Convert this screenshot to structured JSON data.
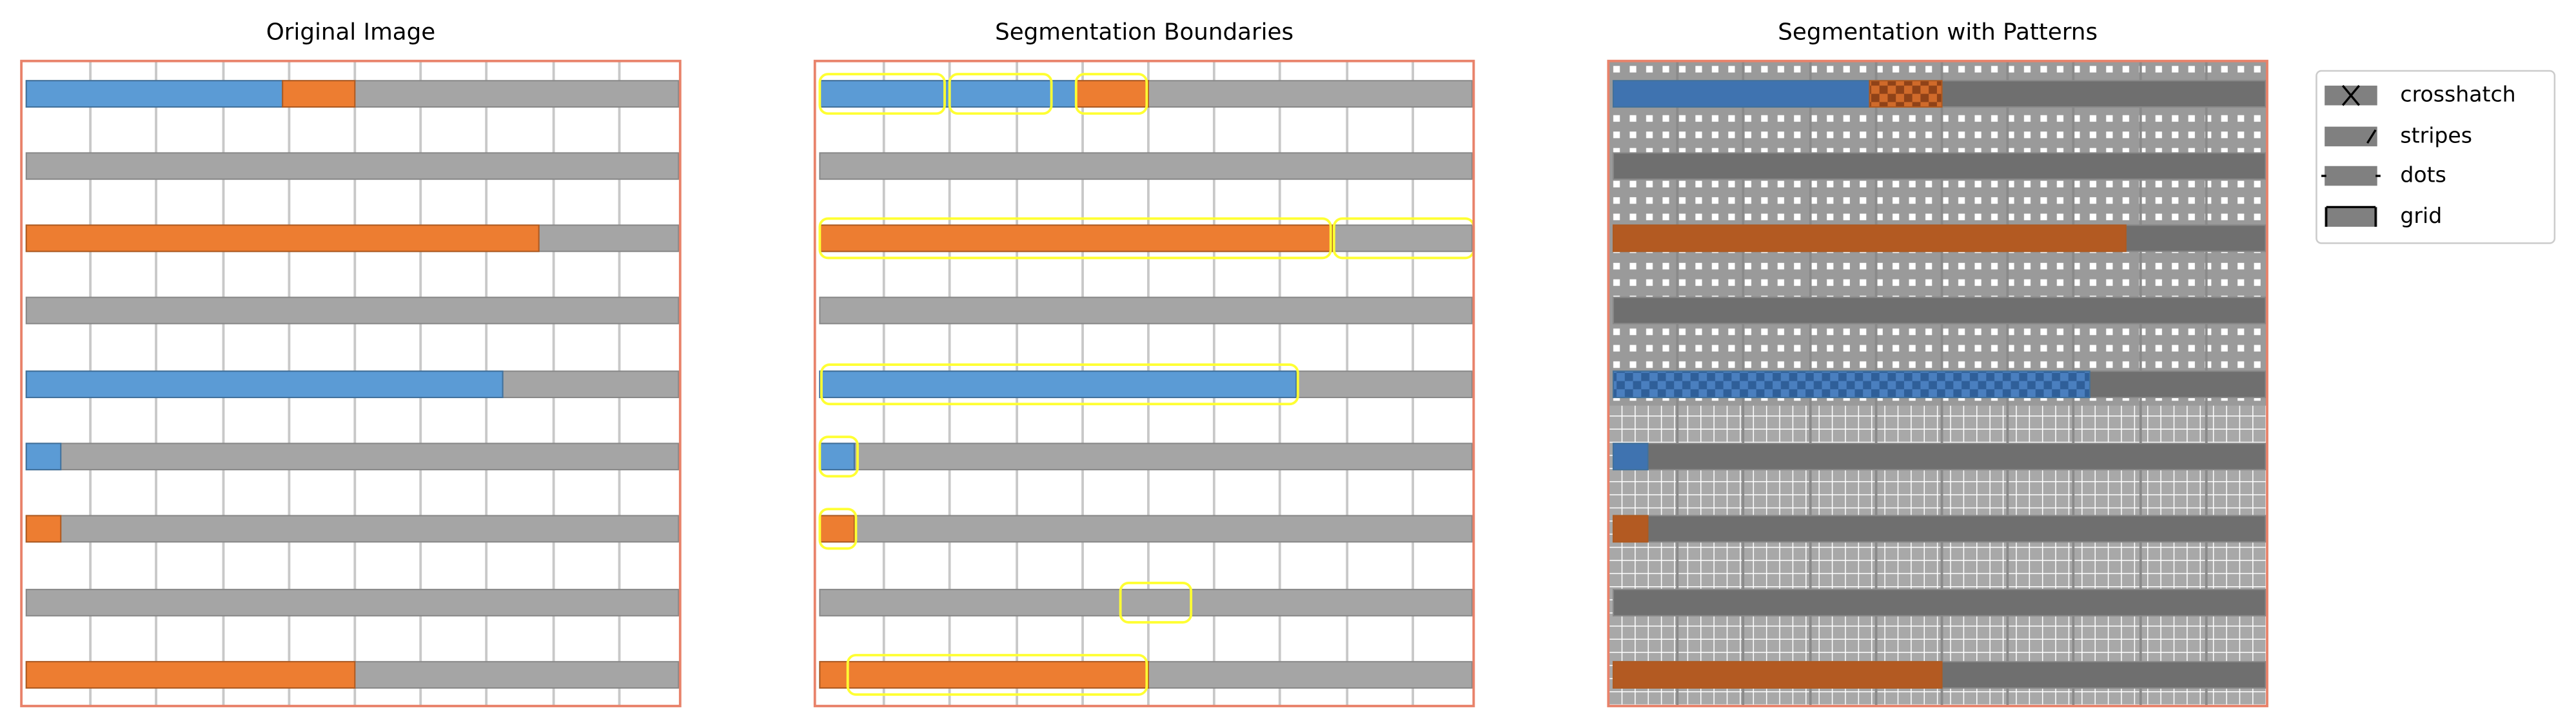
{
  "panels": [
    {
      "title": "Original Image"
    },
    {
      "title": "Segmentation Boundaries"
    },
    {
      "title": "Segmentation with Patterns"
    }
  ],
  "legend": {
    "entries": [
      "crosshatch",
      "stripes",
      "dots",
      "grid"
    ]
  }
}
